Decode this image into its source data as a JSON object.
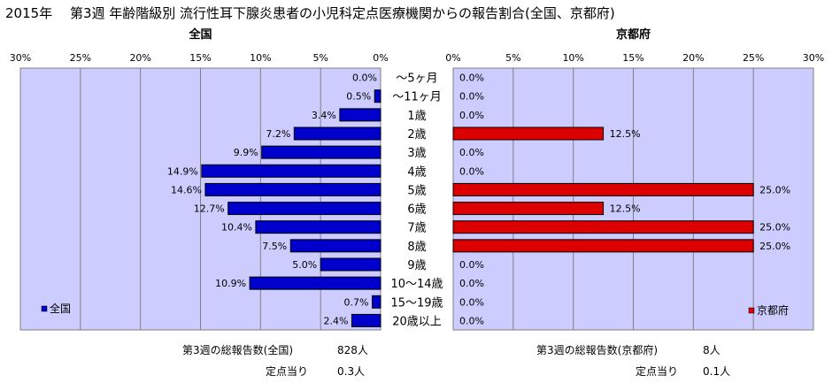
{
  "title": "2015年　 第3週 年齢階級別 流行性耳下腺炎患者の小児科定点医療機関からの報告割合(全国、京都府)",
  "chart_data": [
    {
      "type": "bar",
      "title": "全国",
      "orientation": "horizontal",
      "direction": "right-to-left",
      "categories": [
        "～5ヶ月",
        "～11ヶ月",
        "1歳",
        "2歳",
        "3歳",
        "4歳",
        "5歳",
        "6歳",
        "7歳",
        "8歳",
        "9歳",
        "10～14歳",
        "15～19歳",
        "20歳以上"
      ],
      "series": [
        {
          "name": "全国",
          "values": [
            0.0,
            0.5,
            3.4,
            7.2,
            9.9,
            14.9,
            14.6,
            12.7,
            10.4,
            7.5,
            5.0,
            10.9,
            0.7,
            2.4
          ]
        }
      ],
      "data_labels": [
        "0.0%",
        "0.5%",
        "3.4%",
        "7.2%",
        "9.9%",
        "14.9%",
        "14.6%",
        "12.7%",
        "10.4%",
        "7.5%",
        "5.0%",
        "10.9%",
        "0.7%",
        "2.4%"
      ],
      "xlim": [
        0,
        30
      ],
      "ticks": [
        "30%",
        "25%",
        "20%",
        "15%",
        "10%",
        "5%",
        "0%"
      ],
      "grid": true,
      "legend": "bottom-left",
      "color": "#0000cc"
    },
    {
      "type": "bar",
      "title": "京都府",
      "orientation": "horizontal",
      "categories": [
        "～5ヶ月",
        "～11ヶ月",
        "1歳",
        "2歳",
        "3歳",
        "4歳",
        "5歳",
        "6歳",
        "7歳",
        "8歳",
        "9歳",
        "10～14歳",
        "15～19歳",
        "20歳以上"
      ],
      "series": [
        {
          "name": "京都府",
          "values": [
            0.0,
            0.0,
            0.0,
            12.5,
            0.0,
            0.0,
            25.0,
            12.5,
            25.0,
            25.0,
            0.0,
            0.0,
            0.0,
            0.0
          ]
        }
      ],
      "data_labels": [
        "0.0%",
        "0.0%",
        "0.0%",
        "12.5%",
        "0.0%",
        "0.0%",
        "25.0%",
        "12.5%",
        "25.0%",
        "25.0%",
        "0.0%",
        "0.0%",
        "0.0%",
        "0.0%"
      ],
      "xlim": [
        0,
        30
      ],
      "ticks": [
        "0%",
        "5%",
        "10%",
        "15%",
        "20%",
        "25%",
        "30%"
      ],
      "grid": true,
      "legend": "bottom-right",
      "color": "#dd0000"
    }
  ],
  "footer": {
    "national_total_label": "第3週の総報告数(全国)",
    "national_total_value": "828人",
    "national_per_label": "定点当り",
    "national_per_value": "0.3人",
    "kyoto_total_label": "第3週の総報告数(京都府)",
    "kyoto_total_value": "8人",
    "kyoto_per_label": "定点当り",
    "kyoto_per_value": "0.1人"
  }
}
